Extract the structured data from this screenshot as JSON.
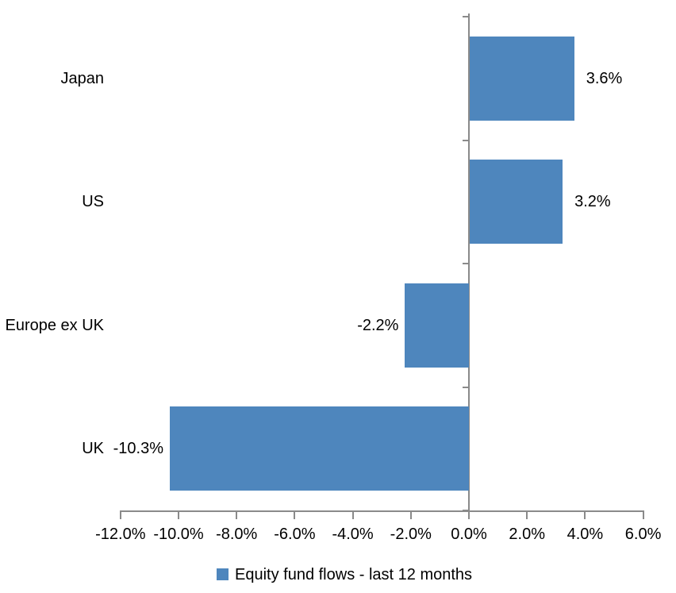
{
  "chart_data": {
    "type": "bar",
    "orientation": "horizontal",
    "title": "",
    "categories": [
      "Japan",
      "US",
      "Europe ex UK",
      "UK"
    ],
    "series": [
      {
        "name": "Equity fund flows - last 12 months",
        "values": [
          3.6,
          3.2,
          -2.2,
          -10.3
        ]
      }
    ],
    "data_labels": [
      "3.6%",
      "3.2%",
      "-2.2%",
      "-10.3%"
    ],
    "x_ticks": [
      {
        "value": -12,
        "label": "-12.0%"
      },
      {
        "value": -10,
        "label": "-10.0%"
      },
      {
        "value": -8,
        "label": "-8.0%"
      },
      {
        "value": -6,
        "label": "-6.0%"
      },
      {
        "value": -4,
        "label": "-4.0%"
      },
      {
        "value": -2,
        "label": "-2.0%"
      },
      {
        "value": 0,
        "label": "0.0%"
      },
      {
        "value": 2,
        "label": "2.0%"
      },
      {
        "value": 4,
        "label": "4.0%"
      },
      {
        "value": 6,
        "label": "6.0%"
      }
    ],
    "xlim": [
      -12,
      6
    ],
    "grid": false,
    "legend": {
      "label": "Equity fund flows - last 12 months",
      "position": "bottom-center"
    },
    "colors": {
      "bar": "#4E86BD",
      "axis": "#8A8A8A",
      "text": "#000000",
      "background": "#FFFFFF"
    }
  }
}
